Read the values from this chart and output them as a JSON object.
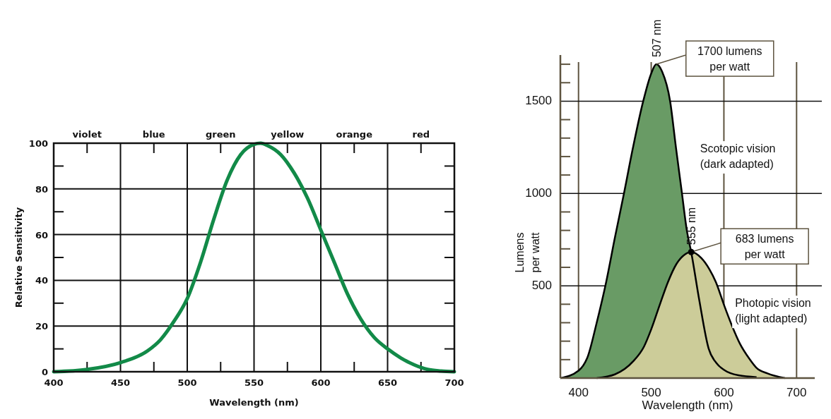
{
  "chart_data": [
    {
      "type": "line",
      "xlabel": "Wavelength (nm)",
      "ylabel": "Relative Sensitivity",
      "xlim": [
        400,
        700
      ],
      "ylim": [
        0,
        100
      ],
      "xticks": [
        400,
        {
          "value": 425,
          "label": null
        },
        450,
        {
          "value": 475,
          "label": null
        },
        500,
        {
          "value": 525,
          "label": null
        },
        550,
        {
          "value": 575,
          "label": null
        },
        600,
        {
          "value": 625,
          "label": null
        },
        650,
        {
          "value": 675,
          "label": null
        },
        700
      ],
      "yticks": [
        0,
        {
          "value": 10,
          "label": null
        },
        20,
        {
          "value": 30,
          "label": null
        },
        40,
        {
          "value": 50,
          "label": null
        },
        60,
        {
          "value": 70,
          "label": null
        },
        80,
        {
          "value": 90,
          "label": null
        },
        100
      ],
      "grid": true,
      "annotations": [
        "violet",
        "blue",
        "green",
        "yellow",
        "orange",
        "red"
      ],
      "series": [
        {
          "color": "#128a48",
          "x": [
            400,
            425,
            450,
            470,
            480,
            490,
            500,
            510,
            520,
            530,
            540,
            550,
            555,
            560,
            570,
            580,
            590,
            600,
            610,
            620,
            630,
            640,
            650,
            660,
            670,
            680,
            690,
            700
          ],
          "values": [
            0,
            1,
            4,
            9,
            14,
            22,
            32,
            48,
            67,
            84,
            95,
            99.5,
            100,
            99,
            95,
            87,
            76,
            62,
            48,
            34,
            23,
            15,
            10,
            6,
            3,
            1,
            0.3,
            0
          ]
        }
      ]
    },
    {
      "type": "area",
      "xlabel": "Wavelength (nm)",
      "ylabel": "Lumens per watt",
      "xlim": [
        375,
        725
      ],
      "ylim": [
        0,
        1750
      ],
      "xticks": [
        400,
        500,
        600,
        700
      ],
      "yticks": [
        {
          "value": 100,
          "label": null
        },
        {
          "value": 200,
          "label": null
        },
        {
          "value": 300,
          "label": null
        },
        {
          "value": 400,
          "label": null
        },
        500,
        {
          "value": 600,
          "label": null
        },
        {
          "value": 700,
          "label": null
        },
        {
          "value": 800,
          "label": null
        },
        {
          "value": 900,
          "label": null
        },
        1000,
        {
          "value": 1100,
          "label": null
        },
        {
          "value": 1200,
          "label": null
        },
        {
          "value": 1300,
          "label": null
        },
        {
          "value": 1400,
          "label": null
        },
        1500,
        {
          "value": 1600,
          "label": null
        },
        {
          "value": 1700,
          "label": null
        }
      ],
      "grid": true,
      "annotations": [
        {
          "text": "1700 lumens per watt",
          "x": 507,
          "y": 1700
        },
        "507 nm",
        {
          "text": "683 lumens per watt",
          "x": 555,
          "y": 683
        },
        "555 nm"
      ],
      "series": [
        {
          "name": "Scotopic vision (dark adapted)",
          "color": "#699b65",
          "x": [
            375,
            400,
            413,
            425,
            438,
            450,
            463,
            475,
            489,
            500,
            507,
            515,
            526,
            534,
            542,
            549,
            555,
            566,
            579,
            590,
            600,
            620,
            645
          ],
          "values": [
            0,
            40,
            120,
            300,
            520,
            760,
            1010,
            1250,
            1500,
            1650,
            1700,
            1660,
            1500,
            1250,
            1010,
            800,
            683,
            425,
            160,
            80,
            45,
            15,
            5
          ]
        },
        {
          "name": "Photopic vision (light adapted)",
          "color": "#cccc99",
          "x": [
            425,
            450,
            475,
            490,
            500,
            512,
            523,
            535,
            546,
            555,
            569,
            580,
            589,
            600,
            611,
            622,
            635,
            645,
            660,
            684
          ],
          "values": [
            0,
            20,
            90,
            170,
            264,
            400,
            520,
            620,
            669,
            683,
            650,
            590,
            520,
            398,
            285,
            187,
            105,
            55,
            25,
            0
          ]
        }
      ]
    }
  ]
}
